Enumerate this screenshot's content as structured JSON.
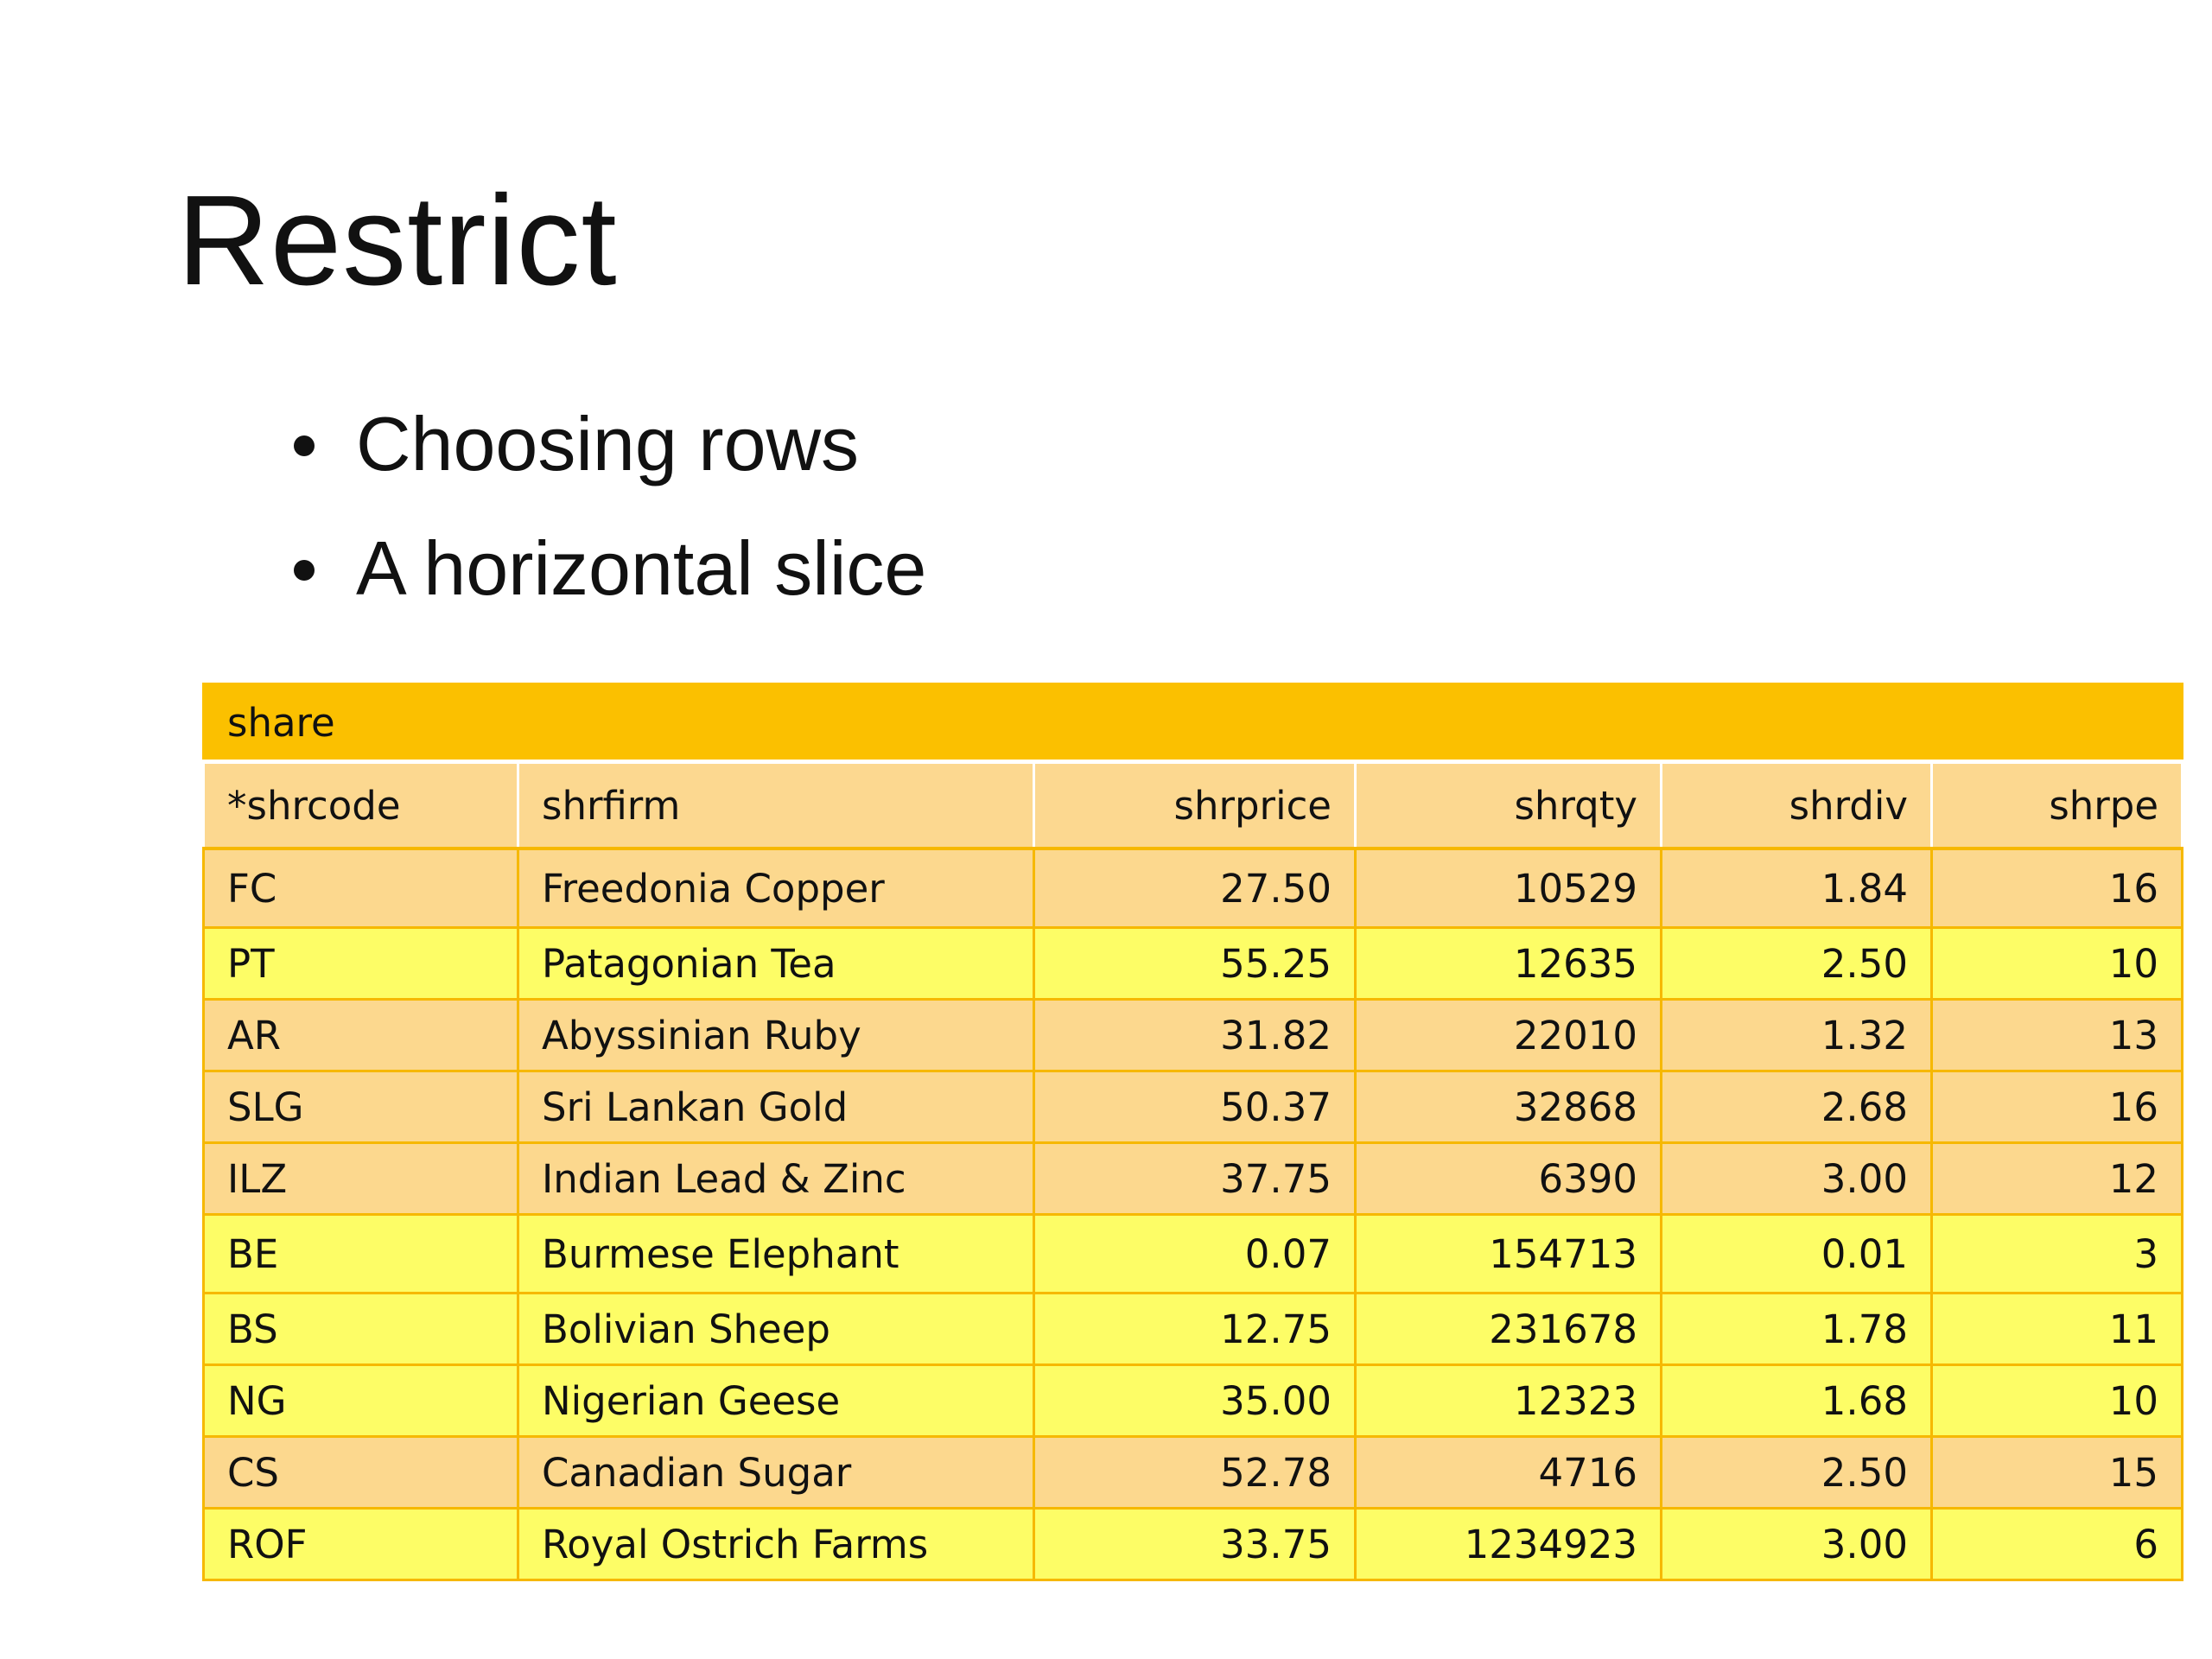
{
  "slide": {
    "title": "Restrict",
    "bullets": [
      "Choosing rows",
      "A horizontal slice"
    ]
  },
  "table": {
    "caption": "share",
    "columns": [
      "*shrcode",
      "shrfirm",
      "shrprice",
      "shrqty",
      "shrdiv",
      "shrpe"
    ],
    "rows": [
      [
        "FC",
        "Freedonia Copper",
        "27.50",
        "10529",
        "1.84",
        "16"
      ],
      [
        "PT",
        "Patagonian Tea",
        "55.25",
        "12635",
        "2.50",
        "10"
      ],
      [
        "AR",
        "Abyssinian Ruby",
        "31.82",
        "22010",
        "1.32",
        "13"
      ],
      [
        "SLG",
        "Sri Lankan Gold",
        "50.37",
        "32868",
        "2.68",
        "16"
      ],
      [
        "ILZ",
        "Indian Lead & Zinc",
        "37.75",
        "6390",
        "3.00",
        "12"
      ],
      [
        "BE",
        "Burmese Elephant",
        "0.07",
        "154713",
        "0.01",
        "3"
      ],
      [
        "BS",
        "Bolivian Sheep",
        "12.75",
        "231678",
        "1.78",
        "11"
      ],
      [
        "NG",
        "Nigerian Geese",
        "35.00",
        "12323",
        "1.68",
        "10"
      ],
      [
        "CS",
        "Canadian Sugar",
        "52.78",
        "4716",
        "2.50",
        "15"
      ],
      [
        "ROF",
        "Royal Ostrich Farms",
        "33.75",
        "1234923",
        "3.00",
        "6"
      ]
    ],
    "row_highlight": [
      "orange",
      "yellow",
      "orange",
      "orange",
      "orange",
      "yellow",
      "yellow",
      "yellow",
      "orange",
      "yellow"
    ],
    "colors": {
      "caption_bg": "#fbc000",
      "header_bg": "#fcd890",
      "orange_row": "#fcd88e",
      "yellow_row": "#fdfd66",
      "border": "#f6b800"
    }
  }
}
